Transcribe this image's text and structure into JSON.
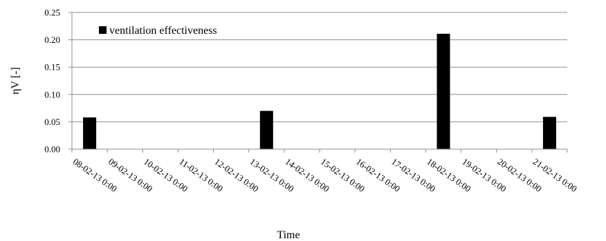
{
  "chart_data": {
    "type": "bar",
    "categories": [
      "08-02-13 0:00",
      "09-02-13 0:00",
      "10-02-13 0:00",
      "11-02-13 0:00",
      "12-02-13 0:00",
      "13-02-13 0:00",
      "14-02-13 0:00",
      "15-02-13 0:00",
      "16-02-13 0:00",
      "17-02-13 0:00",
      "18-02-13 0:00",
      "19-02-13 0:00",
      "20-02-13 0:00",
      "21-02-13 0:00"
    ],
    "series": [
      {
        "name": "ventilation effectiveness",
        "values": [
          0.058,
          0,
          0,
          0,
          0,
          0.07,
          0,
          0,
          0,
          0,
          0.211,
          0,
          0,
          0.059
        ],
        "color": "#000000"
      }
    ],
    "y_ticks": [
      "0.00",
      "0.05",
      "0.10",
      "0.15",
      "0.20",
      "0.25"
    ],
    "ylim": [
      0,
      0.25
    ],
    "xlabel": "Time",
    "ylabel": "ηV [-]",
    "grid": true,
    "legend": "top-left"
  }
}
